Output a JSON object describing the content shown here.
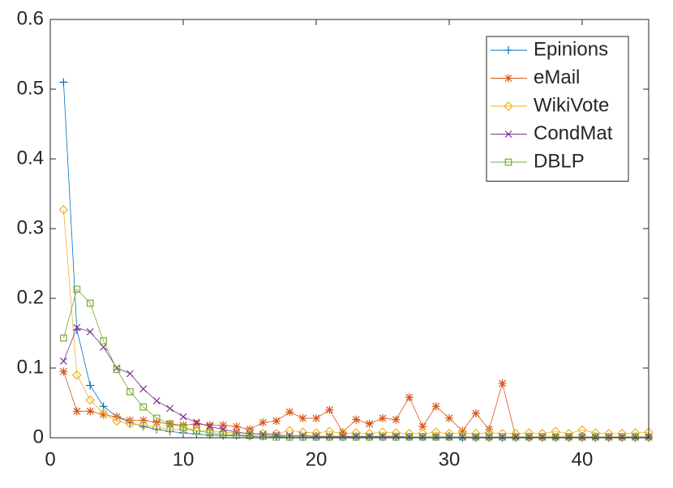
{
  "chart_data": {
    "type": "line",
    "x": [
      1,
      2,
      3,
      4,
      5,
      6,
      7,
      8,
      9,
      10,
      11,
      12,
      13,
      14,
      15,
      16,
      17,
      18,
      19,
      20,
      21,
      22,
      23,
      24,
      25,
      26,
      27,
      28,
      29,
      30,
      31,
      32,
      33,
      34,
      35,
      36,
      37,
      38,
      39,
      40,
      41,
      42,
      43,
      44,
      45
    ],
    "xlim": [
      0,
      45
    ],
    "xticks": [
      0,
      10,
      20,
      30,
      40
    ],
    "ylim": [
      0,
      0.6
    ],
    "yticks": [
      0,
      0.1,
      0.2,
      0.3,
      0.4,
      0.5,
      0.6
    ],
    "legend": "top-right",
    "series": [
      {
        "name": "Epinions",
        "color": "#0072bd",
        "marker": "plus",
        "values": [
          0.51,
          0.155,
          0.075,
          0.045,
          0.03,
          0.022,
          0.016,
          0.012,
          0.009,
          0.007,
          0.005,
          0.004,
          0.003,
          0.003,
          0.002,
          0.002,
          0.002,
          0.001,
          0.001,
          0.001,
          0.001,
          0.001,
          0.001,
          0.001,
          0.001,
          0.001,
          0.001,
          0.001,
          0.001,
          0.001,
          0,
          0,
          0,
          0,
          0,
          0,
          0,
          0,
          0,
          0,
          0,
          0,
          0,
          0,
          0
        ]
      },
      {
        "name": "eMail",
        "color": "#d95319",
        "marker": "asterisk",
        "values": [
          0.095,
          0.038,
          0.038,
          0.033,
          0.03,
          0.025,
          0.025,
          0.022,
          0.02,
          0.018,
          0.02,
          0.018,
          0.018,
          0.016,
          0.012,
          0.022,
          0.024,
          0.037,
          0.028,
          0.028,
          0.04,
          0.008,
          0.026,
          0.02,
          0.028,
          0.026,
          0.058,
          0.016,
          0.045,
          0.028,
          0.01,
          0.035,
          0.012,
          0.078,
          0.001,
          0.001,
          0.001,
          0.001,
          0.001,
          0.001,
          0.001,
          0.001,
          0.001,
          0.001,
          0.001
        ]
      },
      {
        "name": "WikiVote",
        "color": "#edb120",
        "marker": "diamond",
        "values": [
          0.327,
          0.09,
          0.054,
          0.035,
          0.024,
          0.02,
          0.018,
          0.015,
          0.012,
          0.012,
          0.01,
          0.01,
          0.008,
          0.007,
          0.006,
          0.006,
          0.006,
          0.01,
          0.008,
          0.007,
          0.009,
          0.006,
          0.007,
          0.006,
          0.008,
          0.007,
          0.006,
          0.006,
          0.008,
          0.006,
          0.007,
          0.006,
          0.007,
          0.006,
          0.006,
          0.007,
          0.006,
          0.009,
          0.006,
          0.011,
          0.007,
          0.006,
          0.006,
          0.007,
          0.008
        ]
      },
      {
        "name": "CondMat",
        "color": "#7e2f8e",
        "marker": "cross",
        "values": [
          0.11,
          0.158,
          0.152,
          0.13,
          0.1,
          0.092,
          0.07,
          0.053,
          0.042,
          0.03,
          0.022,
          0.016,
          0.012,
          0.008,
          0.006,
          0.005,
          0.004,
          0.003,
          0.003,
          0.002,
          0.002,
          0.002,
          0.002,
          0.002,
          0.002,
          0.002,
          0.001,
          0.001,
          0.001,
          0.001,
          0.001,
          0.001,
          0.001,
          0.001,
          0.001,
          0.001,
          0.001,
          0.001,
          0.001,
          0.001,
          0.001,
          0.001,
          0.001,
          0.001,
          0.001
        ]
      },
      {
        "name": "DBLP",
        "color": "#77ac30",
        "marker": "square",
        "values": [
          0.143,
          0.213,
          0.193,
          0.139,
          0.098,
          0.066,
          0.044,
          0.028,
          0.02,
          0.015,
          0.01,
          0.007,
          0.005,
          0.004,
          0.003,
          0.002,
          0.001,
          0.001,
          0.001,
          0.001,
          0.001,
          0.001,
          0.001,
          0.001,
          0.001,
          0.001,
          0.001,
          0.001,
          0.001,
          0.001,
          0.001,
          0.001,
          0.001,
          0.001,
          0.001,
          0.001,
          0.001,
          0.001,
          0.001,
          0.001,
          0.001,
          0.001,
          0.001,
          0.001,
          0.001
        ]
      }
    ]
  }
}
